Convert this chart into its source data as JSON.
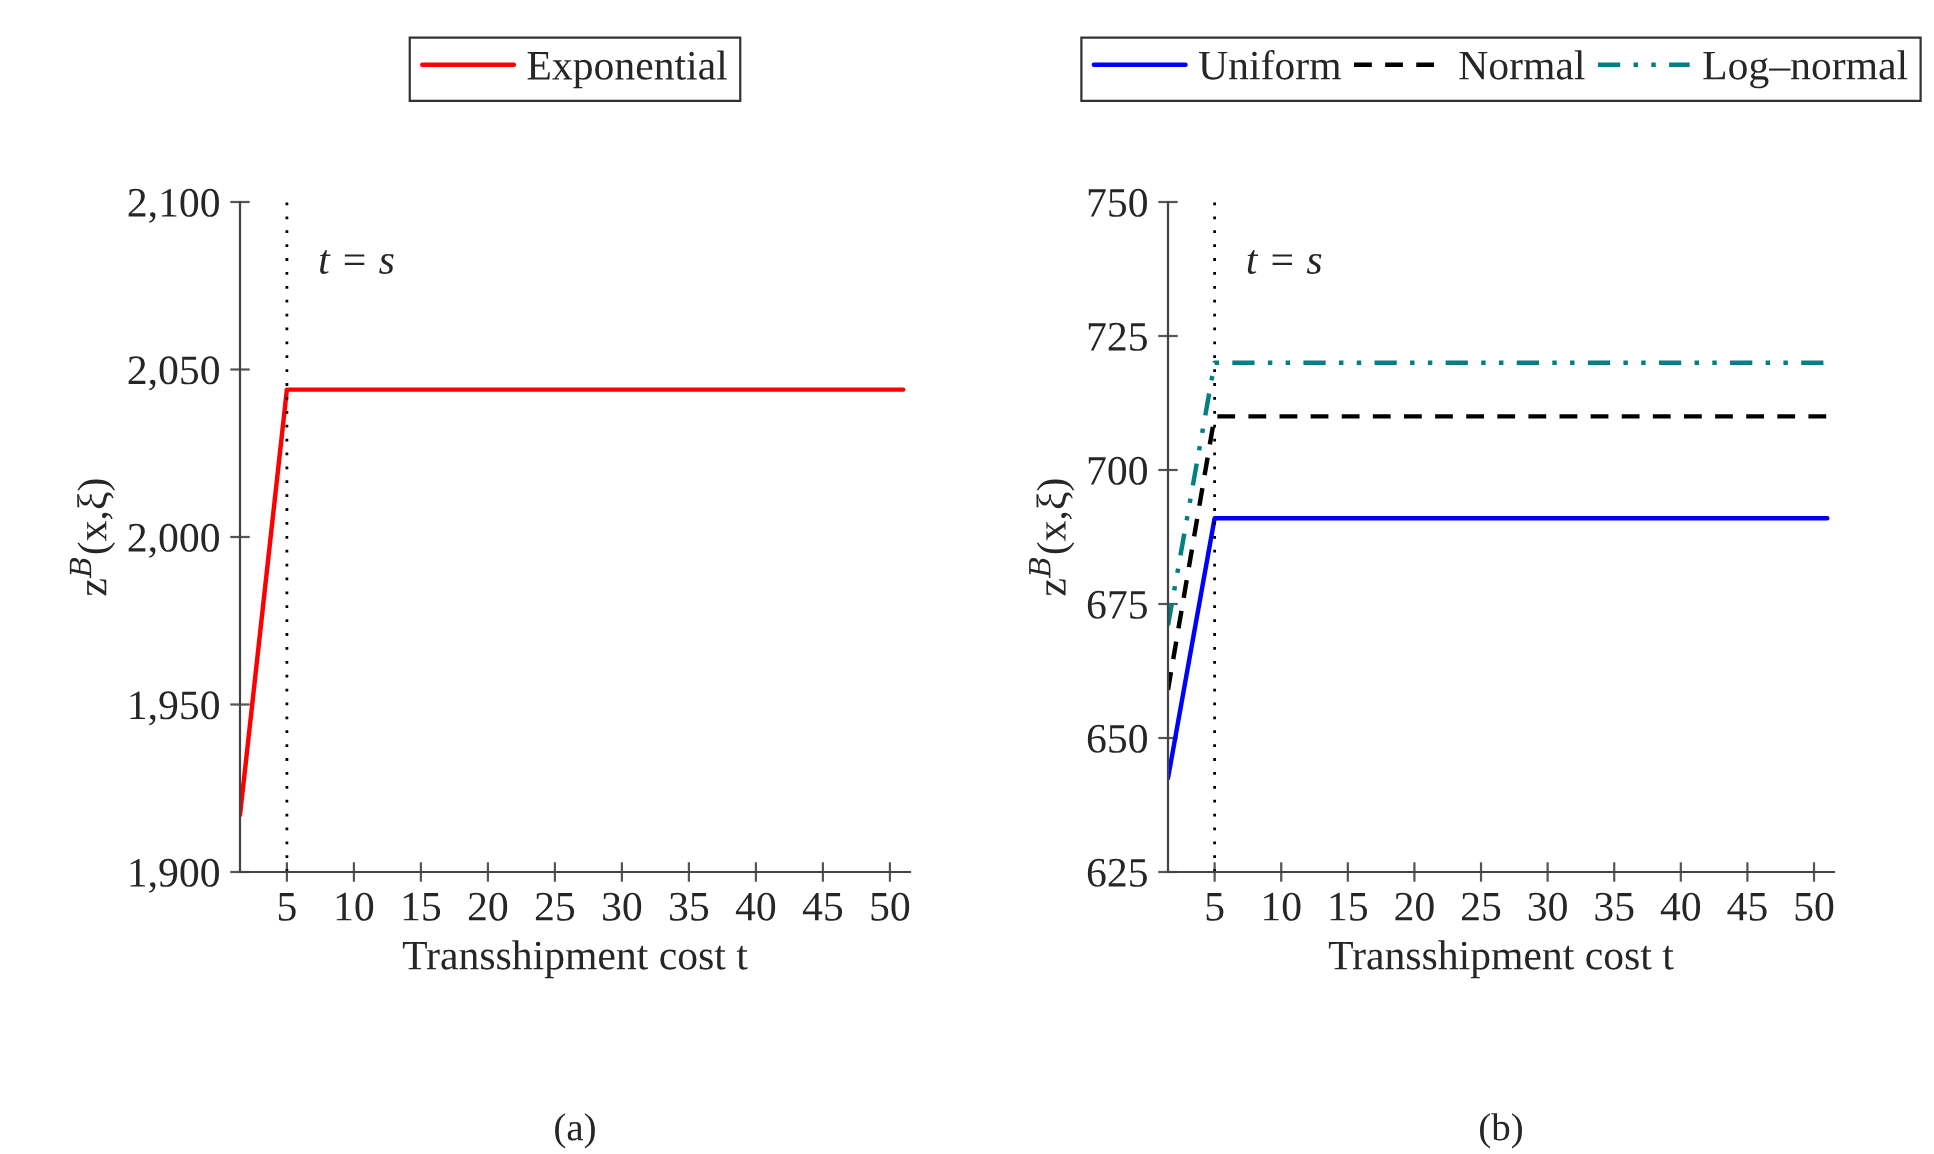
{
  "chart_data": [
    {
      "type": "line",
      "xlabel": "Transshipment cost t",
      "ylabel": "z$^{B}$(x,ξ)",
      "legend": "top",
      "grid": false,
      "marker": "none",
      "xlim": [
        1.5,
        51.5
      ],
      "xticks": [
        5,
        10,
        15,
        20,
        25,
        30,
        35,
        40,
        45,
        50
      ],
      "ylim": [
        1900,
        2100
      ],
      "yticks": [
        {
          "value": 1900,
          "label": "1,900"
        },
        {
          "value": 1950,
          "label": "1,950"
        },
        {
          "value": 2000,
          "label": "2,000"
        },
        {
          "value": 2050,
          "label": "2,050"
        },
        {
          "value": 2100,
          "label": "2,100"
        }
      ],
      "x": [
        1.5,
        5,
        51
      ],
      "series": [
        {
          "name": "Exponential",
          "color": "#ff0000",
          "line_style": "solid",
          "values": [
            1917,
            2044,
            2044
          ]
        }
      ],
      "ref_lines": [
        {
          "axis": "x",
          "value": 5,
          "label": "t = s",
          "color": "#000000",
          "line_style": "dotted"
        }
      ],
      "annotations": [
        "(a)"
      ]
    },
    {
      "type": "line",
      "xlabel": "Transshipment cost t",
      "ylabel": "z$^{B}$(x,ξ)",
      "legend": "top",
      "grid": false,
      "marker": "none",
      "xlim": [
        1.5,
        51.5
      ],
      "xticks": [
        5,
        10,
        15,
        20,
        25,
        30,
        35,
        40,
        45,
        50
      ],
      "ylim": [
        625,
        750
      ],
      "yticks": [
        625,
        650,
        675,
        700,
        725,
        750
      ],
      "x": [
        1.5,
        5,
        51
      ],
      "series": [
        {
          "name": "Uniform",
          "color": "#0000ff",
          "line_style": "solid",
          "values": [
            642.5,
            691,
            691
          ]
        },
        {
          "name": "Normal",
          "color": "#000000",
          "line_style": "dashed",
          "values": [
            659,
            710,
            710
          ]
        },
        {
          "name": "Log–normal",
          "color": "#008080",
          "line_style": "dashdotdotted",
          "values": [
            671,
            720,
            720
          ]
        }
      ],
      "ref_lines": [
        {
          "axis": "x",
          "value": 5,
          "label": "t = s",
          "color": "#000000",
          "line_style": "dotted"
        }
      ],
      "annotations": [
        "(b)"
      ]
    }
  ]
}
